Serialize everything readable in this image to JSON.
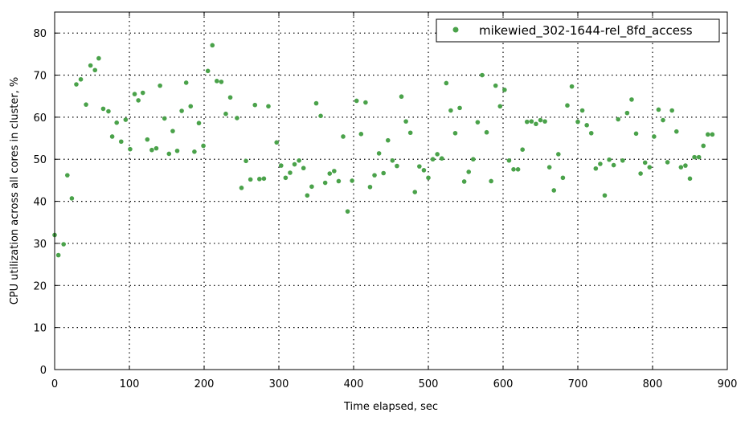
{
  "chart_data": {
    "type": "scatter",
    "title": "",
    "xlabel": "Time elapsed, sec",
    "ylabel": "CPU utilization across all cores in cluster, %",
    "xlim": [
      0,
      900
    ],
    "ylim": [
      0,
      85
    ],
    "xticks": [
      0,
      100,
      200,
      300,
      400,
      500,
      600,
      700,
      800,
      900
    ],
    "yticks": [
      0,
      10,
      20,
      30,
      40,
      50,
      60,
      70,
      80
    ],
    "grid": true,
    "legend_position": "top-right",
    "series": [
      {
        "name": "mikewied_302-1644-rel_8fd_access",
        "color": "#4aa24a",
        "points": [
          [
            0,
            32
          ],
          [
            5,
            27.2
          ],
          [
            12,
            29.8
          ],
          [
            17,
            46.2
          ],
          [
            23,
            40.7
          ],
          [
            29,
            67.8
          ],
          [
            35,
            69
          ],
          [
            42,
            63
          ],
          [
            48,
            72.3
          ],
          [
            54,
            71.2
          ],
          [
            59,
            74
          ],
          [
            65,
            62
          ],
          [
            72,
            61.4
          ],
          [
            77,
            55.4
          ],
          [
            83,
            58.7
          ],
          [
            89,
            54.2
          ],
          [
            95,
            59.4
          ],
          [
            101,
            52.4
          ],
          [
            107,
            65.5
          ],
          [
            112,
            64
          ],
          [
            118,
            65.8
          ],
          [
            124,
            54.7
          ],
          [
            130,
            52.2
          ],
          [
            136,
            52.6
          ],
          [
            141,
            67.5
          ],
          [
            147,
            59.7
          ],
          [
            153,
            51.3
          ],
          [
            158,
            56.7
          ],
          [
            164,
            52
          ],
          [
            170,
            61.5
          ],
          [
            176,
            68.2
          ],
          [
            182,
            62.6
          ],
          [
            187,
            51.8
          ],
          [
            193,
            58.6
          ],
          [
            199,
            53.2
          ],
          [
            205,
            71
          ],
          [
            211,
            77.1
          ],
          [
            217,
            68.6
          ],
          [
            223,
            68.4
          ],
          [
            229,
            60.8
          ],
          [
            235,
            64.7
          ],
          [
            244,
            59.8
          ],
          [
            250,
            43.2
          ],
          [
            256,
            49.6
          ],
          [
            262,
            45.2
          ],
          [
            268,
            62.9
          ],
          [
            274,
            45.3
          ],
          [
            280,
            45.4
          ],
          [
            286,
            62.6
          ],
          [
            297,
            54
          ],
          [
            303,
            48.5
          ],
          [
            309,
            45.6
          ],
          [
            315,
            46.8
          ],
          [
            321,
            48.8
          ],
          [
            327,
            49.7
          ],
          [
            333,
            47.9
          ],
          [
            338,
            41.4
          ],
          [
            344,
            43.5
          ],
          [
            350,
            63.3
          ],
          [
            356,
            60.3
          ],
          [
            362,
            44.4
          ],
          [
            368,
            46.6
          ],
          [
            374,
            47.2
          ],
          [
            380,
            44.8
          ],
          [
            386,
            55.4
          ],
          [
            392,
            37.6
          ],
          [
            398,
            44.9
          ],
          [
            404,
            63.9
          ],
          [
            410,
            56
          ],
          [
            416,
            63.5
          ],
          [
            422,
            43.4
          ],
          [
            428,
            46.2
          ],
          [
            434,
            51.4
          ],
          [
            440,
            46.7
          ],
          [
            446,
            54.5
          ],
          [
            452,
            49.7
          ],
          [
            458,
            48.4
          ],
          [
            464,
            64.9
          ],
          [
            470,
            59
          ],
          [
            476,
            56.3
          ],
          [
            482,
            42.2
          ],
          [
            488,
            48.3
          ],
          [
            494,
            47.4
          ],
          [
            500,
            45.6
          ],
          [
            506,
            50
          ],
          [
            512,
            51.2
          ],
          [
            518,
            50.2
          ],
          [
            524,
            68.1
          ],
          [
            530,
            61.6
          ],
          [
            536,
            56.2
          ],
          [
            542,
            62.2
          ],
          [
            548,
            44.7
          ],
          [
            554,
            47
          ],
          [
            560,
            50
          ],
          [
            566,
            58.8
          ],
          [
            572,
            70
          ],
          [
            578,
            56.4
          ],
          [
            584,
            44.8
          ],
          [
            590,
            67.5
          ],
          [
            596,
            62.6
          ],
          [
            602,
            66.5
          ],
          [
            608,
            49.7
          ],
          [
            614,
            47.6
          ],
          [
            620,
            47.6
          ],
          [
            626,
            52.3
          ],
          [
            632,
            58.9
          ],
          [
            638,
            59
          ],
          [
            644,
            58.4
          ],
          [
            650,
            59.3
          ],
          [
            656,
            59
          ],
          [
            662,
            48.1
          ],
          [
            668,
            42.6
          ],
          [
            674,
            51.2
          ],
          [
            680,
            45.6
          ],
          [
            686,
            62.8
          ],
          [
            692,
            67.3
          ],
          [
            700,
            58.9
          ],
          [
            706,
            61.6
          ],
          [
            712,
            58.1
          ],
          [
            718,
            56.2
          ],
          [
            724,
            47.8
          ],
          [
            730,
            48.9
          ],
          [
            736,
            41.4
          ],
          [
            742,
            49.9
          ],
          [
            748,
            48.6
          ],
          [
            754,
            59.5
          ],
          [
            760,
            49.7
          ],
          [
            766,
            61
          ],
          [
            772,
            64.2
          ],
          [
            778,
            56.1
          ],
          [
            784,
            46.6
          ],
          [
            790,
            49.2
          ],
          [
            796,
            48.1
          ],
          [
            802,
            55.4
          ],
          [
            808,
            61.8
          ],
          [
            814,
            59.3
          ],
          [
            820,
            49.3
          ],
          [
            826,
            61.6
          ],
          [
            832,
            56.6
          ],
          [
            838,
            48.1
          ],
          [
            844,
            48.5
          ],
          [
            850,
            45.4
          ],
          [
            856,
            50.5
          ],
          [
            862,
            50.5
          ],
          [
            868,
            53.2
          ],
          [
            874,
            55.9
          ],
          [
            880,
            55.9
          ]
        ]
      }
    ]
  }
}
